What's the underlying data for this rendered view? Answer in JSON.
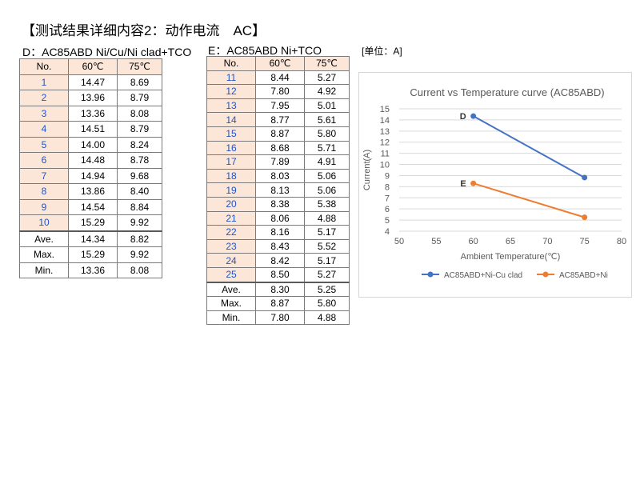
{
  "header": {
    "title": "【测试结果详细内容2：动作电流　AC】",
    "unit": "[单位：A]"
  },
  "tableD": {
    "caption": "D：AC85ABD  Ni/Cu/Ni clad+TCO",
    "headers": [
      "No.",
      "60℃",
      "75℃"
    ],
    "rows": [
      [
        "1",
        "14.47",
        "8.69"
      ],
      [
        "2",
        "13.96",
        "8.79"
      ],
      [
        "3",
        "13.36",
        "8.08"
      ],
      [
        "4",
        "14.51",
        "8.79"
      ],
      [
        "5",
        "14.00",
        "8.24"
      ],
      [
        "6",
        "14.48",
        "8.78"
      ],
      [
        "7",
        "14.94",
        "9.68"
      ],
      [
        "8",
        "13.86",
        "8.40"
      ],
      [
        "9",
        "14.54",
        "8.84"
      ],
      [
        "10",
        "15.29",
        "9.92"
      ]
    ],
    "stats": [
      [
        "Ave.",
        "14.34",
        "8.82"
      ],
      [
        "Max.",
        "15.29",
        "9.92"
      ],
      [
        "Min.",
        "13.36",
        "8.08"
      ]
    ]
  },
  "tableE": {
    "caption": "E：AC85ABD  Ni+TCO",
    "headers": [
      "No.",
      "60℃",
      "75℃"
    ],
    "rows": [
      [
        "11",
        "8.44",
        "5.27"
      ],
      [
        "12",
        "7.80",
        "4.92"
      ],
      [
        "13",
        "7.95",
        "5.01"
      ],
      [
        "14",
        "8.77",
        "5.61"
      ],
      [
        "15",
        "8.87",
        "5.80"
      ],
      [
        "16",
        "8.68",
        "5.71"
      ],
      [
        "17",
        "7.89",
        "4.91"
      ],
      [
        "18",
        "8.03",
        "5.06"
      ],
      [
        "19",
        "8.13",
        "5.06"
      ],
      [
        "20",
        "8.38",
        "5.38"
      ],
      [
        "21",
        "8.06",
        "4.88"
      ],
      [
        "22",
        "8.16",
        "5.17"
      ],
      [
        "23",
        "8.43",
        "5.52"
      ],
      [
        "24",
        "8.42",
        "5.17"
      ],
      [
        "25",
        "8.50",
        "5.27"
      ]
    ],
    "stats": [
      [
        "Ave.",
        "8.30",
        "5.25"
      ],
      [
        "Max.",
        "8.87",
        "5.80"
      ],
      [
        "Min.",
        "7.80",
        "4.88"
      ]
    ]
  },
  "chart_data": {
    "type": "line",
    "title": "Current vs Temperature curve (AC85ABD)",
    "xlabel": "Ambient Temperature(℃)",
    "ylabel": "Current(A)",
    "xlim": [
      50,
      80
    ],
    "ylim": [
      4,
      15
    ],
    "xticks": [
      50,
      55,
      60,
      65,
      70,
      75,
      80
    ],
    "yticks": [
      4,
      5,
      6,
      7,
      8,
      9,
      10,
      11,
      12,
      13,
      14,
      15
    ],
    "grid": true,
    "legend": "bottom",
    "series": [
      {
        "name": "AC85ABD+Ni-Cu clad",
        "label": "D",
        "color": "#4472c4",
        "x": [
          60,
          75
        ],
        "y": [
          14.34,
          8.82
        ]
      },
      {
        "name": "AC85ABD+Ni",
        "label": "E",
        "color": "#ed7d31",
        "x": [
          60,
          75
        ],
        "y": [
          8.3,
          5.25
        ]
      }
    ]
  }
}
